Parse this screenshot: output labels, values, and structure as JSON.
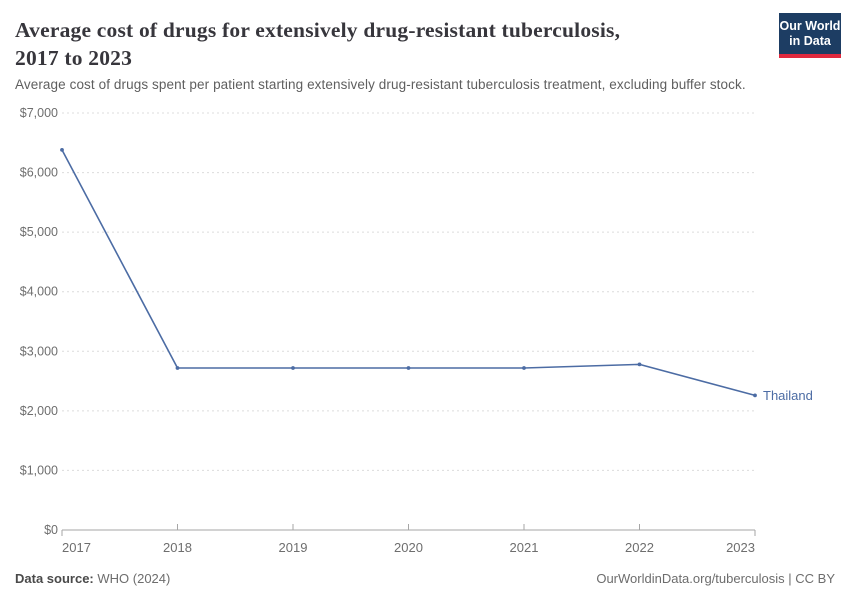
{
  "header": {
    "title_lines": [
      "Average cost of drugs for extensively drug-resistant tuberculosis,",
      "2017 to 2023"
    ],
    "logo": {
      "line1": "Our World",
      "line2": "in Data"
    }
  },
  "chart_data": {
    "type": "line",
    "title": "Average cost of drugs for extensively drug-resistant tuberculosis, 2017 to 2023",
    "subtitle": "Average cost of drugs spent per patient starting extensively drug-resistant tuberculosis treatment, excluding buffer stock.",
    "x": [
      2017,
      2018,
      2019,
      2020,
      2021,
      2022,
      2023
    ],
    "x_labels": [
      "2017",
      "2018",
      "2019",
      "2020",
      "2021",
      "2022",
      "2023"
    ],
    "series": [
      {
        "name": "Thailand",
        "color": "#4c6ca4",
        "values": [
          6380,
          2720,
          2720,
          2720,
          2720,
          2780,
          2260
        ]
      }
    ],
    "ylim": [
      0,
      7000
    ],
    "yticks": [
      {
        "value": 0,
        "label": "$0"
      },
      {
        "value": 1000,
        "label": "$1,000"
      },
      {
        "value": 2000,
        "label": "$2,000"
      },
      {
        "value": 3000,
        "label": "$3,000"
      },
      {
        "value": 4000,
        "label": "$4,000"
      },
      {
        "value": 5000,
        "label": "$5,000"
      },
      {
        "value": 6000,
        "label": "$6,000"
      },
      {
        "value": 7000,
        "label": "$7,000"
      }
    ],
    "grid": "horizontal-dashed",
    "legend": "end-of-line-label"
  },
  "footer": {
    "source_label": "Data source:",
    "source_value": "WHO (2024)",
    "license": "OurWorldinData.org/tuberculosis | CC BY"
  },
  "colors": {
    "line": "#4c6ca4",
    "logo_navy": "#1d3d63",
    "logo_red": "#e0293e",
    "gridline": "#dcdcdc",
    "axis": "#a6a6a6",
    "tick_text": "#6e6e6e"
  }
}
